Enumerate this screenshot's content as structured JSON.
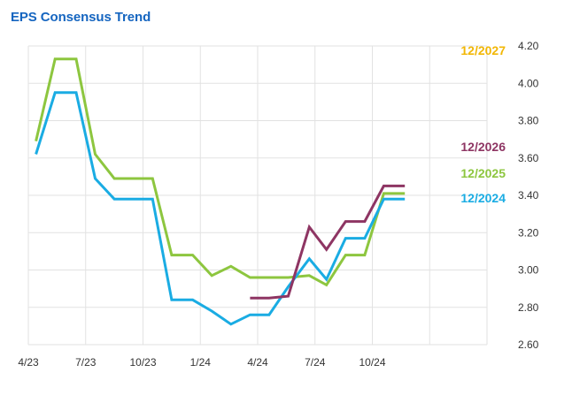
{
  "chart_data": {
    "type": "line",
    "title": "EPS Consensus Trend",
    "title_color": "#1565c0",
    "xlabel": "",
    "ylabel": "",
    "x_ticks": [
      "4/23",
      "7/23",
      "10/23",
      "1/24",
      "4/24",
      "7/24",
      "10/24"
    ],
    "x_range": [
      0,
      24
    ],
    "ylim": [
      2.6,
      4.2
    ],
    "y_ticks": [
      "2.60",
      "2.80",
      "3.00",
      "3.20",
      "3.40",
      "3.60",
      "3.80",
      "4.00",
      "4.20"
    ],
    "y_axis_position": "right",
    "grid": true,
    "legend": "inline-right",
    "series": [
      {
        "name": "12/2024",
        "color": "#1aace3",
        "points": [
          [
            0.4,
            3.62
          ],
          [
            1.4,
            3.95
          ],
          [
            2.5,
            3.95
          ],
          [
            3.5,
            3.49
          ],
          [
            4.5,
            3.38
          ],
          [
            5.5,
            3.38
          ],
          [
            6.5,
            3.38
          ],
          [
            7.5,
            2.84
          ],
          [
            8.6,
            2.84
          ],
          [
            9.6,
            2.78
          ],
          [
            10.6,
            2.71
          ],
          [
            11.6,
            2.76
          ],
          [
            12.6,
            2.76
          ],
          [
            13.6,
            2.91
          ],
          [
            14.7,
            3.06
          ],
          [
            15.6,
            2.95
          ],
          [
            16.6,
            3.17
          ],
          [
            17.6,
            3.17
          ],
          [
            18.6,
            3.38
          ],
          [
            19.7,
            3.38
          ]
        ]
      },
      {
        "name": "12/2025",
        "color": "#8dc63f",
        "points": [
          [
            0.4,
            3.69
          ],
          [
            1.4,
            4.13
          ],
          [
            2.5,
            4.13
          ],
          [
            3.5,
            3.62
          ],
          [
            4.5,
            3.49
          ],
          [
            5.5,
            3.49
          ],
          [
            6.5,
            3.49
          ],
          [
            7.5,
            3.08
          ],
          [
            8.6,
            3.08
          ],
          [
            9.6,
            2.97
          ],
          [
            10.6,
            3.02
          ],
          [
            11.6,
            2.96
          ],
          [
            12.6,
            2.96
          ],
          [
            13.6,
            2.96
          ],
          [
            14.7,
            2.97
          ],
          [
            15.6,
            2.92
          ],
          [
            16.6,
            3.08
          ],
          [
            17.6,
            3.08
          ],
          [
            18.6,
            3.41
          ],
          [
            19.7,
            3.41
          ]
        ]
      },
      {
        "name": "12/2026",
        "color": "#8e3563",
        "points": [
          [
            11.6,
            2.85
          ],
          [
            12.6,
            2.85
          ],
          [
            13.6,
            2.86
          ],
          [
            14.7,
            3.23
          ],
          [
            15.6,
            3.11
          ],
          [
            16.6,
            3.26
          ],
          [
            17.6,
            3.26
          ],
          [
            18.6,
            3.45
          ],
          [
            19.7,
            3.45
          ]
        ]
      },
      {
        "name": "12/2027",
        "color": "#f2b705",
        "points": []
      }
    ]
  }
}
